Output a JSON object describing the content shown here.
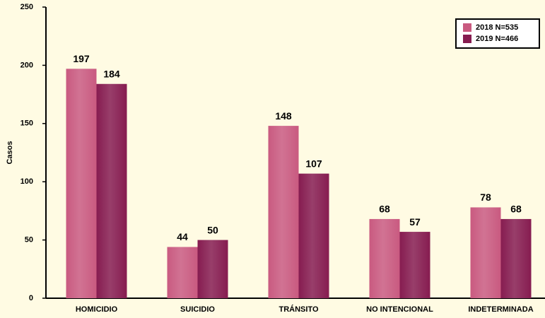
{
  "chart_data": {
    "type": "bar",
    "y_label": "Casos",
    "categories": [
      "HOMICIDIO",
      "SUICIDIO",
      "TRÁNSITO",
      "NO INTENCIONAL",
      "INDETERMINADA"
    ],
    "series": [
      {
        "name": "2018 N=535",
        "color": "#c95a80",
        "values": [
          197,
          44,
          148,
          68,
          78
        ]
      },
      {
        "name": "2019 N=466",
        "color": "#861c50",
        "values": [
          184,
          50,
          107,
          57,
          68
        ]
      }
    ],
    "ylim": [
      0,
      250
    ],
    "yticks": [
      0,
      50,
      100,
      150,
      200,
      250
    ],
    "legend": "upper right"
  }
}
